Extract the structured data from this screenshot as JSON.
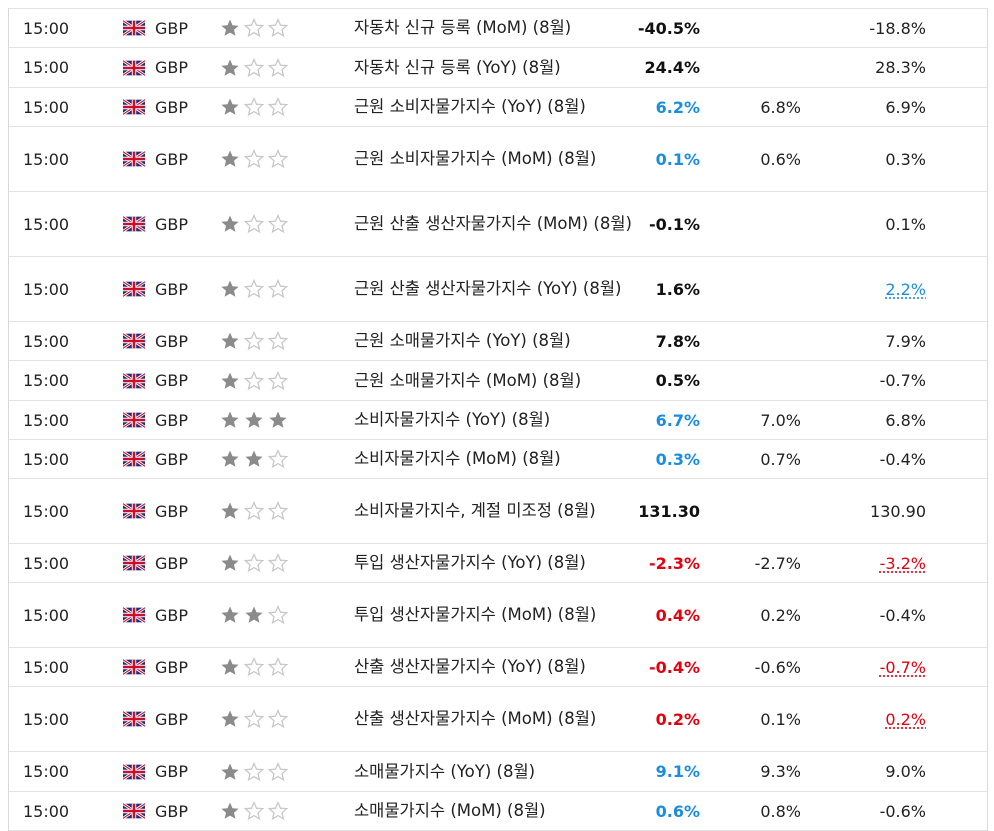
{
  "colors": {
    "black": "#111111",
    "blue": "#1a8ede",
    "red": "#e3000f",
    "star_on": "#8b8b8b",
    "star_off": "#c8c8c8"
  },
  "rows": [
    {
      "time": "15:00",
      "currency": "GBP",
      "importance": 1,
      "event": "자동차 신규 등록 (MoM) (8월)",
      "actual": "-40.5%",
      "actual_color": "black",
      "forecast": "",
      "previous": "-18.8%",
      "previous_color": "",
      "h": 38
    },
    {
      "time": "15:00",
      "currency": "GBP",
      "importance": 1,
      "event": "자동차 신규 등록 (YoY) (8월)",
      "actual": "24.4%",
      "actual_color": "black",
      "forecast": "",
      "previous": "28.3%",
      "previous_color": "",
      "h": 39
    },
    {
      "time": "15:00",
      "currency": "GBP",
      "importance": 1,
      "event": "근원 소비자물가지수 (YoY) (8월)",
      "actual": "6.2%",
      "actual_color": "blue",
      "forecast": "6.8%",
      "previous": "6.9%",
      "previous_color": "",
      "h": 38
    },
    {
      "time": "15:00",
      "currency": "GBP",
      "importance": 1,
      "event": "근원 소비자물가지수 (MoM) (8월)",
      "actual": "0.1%",
      "actual_color": "blue",
      "forecast": "0.6%",
      "previous": "0.3%",
      "previous_color": "",
      "h": 64
    },
    {
      "time": "15:00",
      "currency": "GBP",
      "importance": 1,
      "event": "근원 산출 생산자물가지수 (MoM) (8월)",
      "actual": "-0.1%",
      "actual_color": "black",
      "forecast": "",
      "previous": "0.1%",
      "previous_color": "",
      "h": 64
    },
    {
      "time": "15:00",
      "currency": "GBP",
      "importance": 1,
      "event": "근원 산출 생산자물가지수 (YoY) (8월)",
      "actual": "1.6%",
      "actual_color": "black",
      "forecast": "",
      "previous": "2.2%",
      "previous_color": "blue",
      "h": 64
    },
    {
      "time": "15:00",
      "currency": "GBP",
      "importance": 1,
      "event": "근원 소매물가지수 (YoY) (8월)",
      "actual": "7.8%",
      "actual_color": "black",
      "forecast": "",
      "previous": "7.9%",
      "previous_color": "",
      "h": 38
    },
    {
      "time": "15:00",
      "currency": "GBP",
      "importance": 1,
      "event": "근원 소매물가지수 (MoM) (8월)",
      "actual": "0.5%",
      "actual_color": "black",
      "forecast": "",
      "previous": "-0.7%",
      "previous_color": "",
      "h": 39
    },
    {
      "time": "15:00",
      "currency": "GBP",
      "importance": 3,
      "event": "소비자물가지수 (YoY) (8월)",
      "actual": "6.7%",
      "actual_color": "blue",
      "forecast": "7.0%",
      "previous": "6.8%",
      "previous_color": "",
      "h": 38
    },
    {
      "time": "15:00",
      "currency": "GBP",
      "importance": 2,
      "event": "소비자물가지수 (MoM) (8월)",
      "actual": "0.3%",
      "actual_color": "blue",
      "forecast": "0.7%",
      "previous": "-0.4%",
      "previous_color": "",
      "h": 38
    },
    {
      "time": "15:00",
      "currency": "GBP",
      "importance": 1,
      "event": "소비자물가지수, 계절 미조정 (8월)",
      "actual": "131.30",
      "actual_color": "black",
      "forecast": "",
      "previous": "130.90",
      "previous_color": "",
      "h": 64
    },
    {
      "time": "15:00",
      "currency": "GBP",
      "importance": 1,
      "event": "투입 생산자물가지수 (YoY) (8월)",
      "actual": "-2.3%",
      "actual_color": "red",
      "forecast": "-2.7%",
      "previous": "-3.2%",
      "previous_color": "red",
      "h": 38
    },
    {
      "time": "15:00",
      "currency": "GBP",
      "importance": 2,
      "event": "투입 생산자물가지수 (MoM) (8월)",
      "actual": "0.4%",
      "actual_color": "red",
      "forecast": "0.2%",
      "previous": "-0.4%",
      "previous_color": "",
      "h": 64
    },
    {
      "time": "15:00",
      "currency": "GBP",
      "importance": 1,
      "event": "산출 생산자물가지수 (YoY) (8월)",
      "actual": "-0.4%",
      "actual_color": "red",
      "forecast": "-0.6%",
      "previous": "-0.7%",
      "previous_color": "red",
      "h": 38
    },
    {
      "time": "15:00",
      "currency": "GBP",
      "importance": 1,
      "event": "산출 생산자물가지수 (MoM) (8월)",
      "actual": "0.2%",
      "actual_color": "red",
      "forecast": "0.1%",
      "previous": "0.2%",
      "previous_color": "red",
      "h": 64
    },
    {
      "time": "15:00",
      "currency": "GBP",
      "importance": 1,
      "event": "소매물가지수 (YoY) (8월)",
      "actual": "9.1%",
      "actual_color": "blue",
      "forecast": "9.3%",
      "previous": "9.0%",
      "previous_color": "",
      "h": 39
    },
    {
      "time": "15:00",
      "currency": "GBP",
      "importance": 1,
      "event": "소매물가지수 (MoM) (8월)",
      "actual": "0.6%",
      "actual_color": "blue",
      "forecast": "0.8%",
      "previous": "-0.6%",
      "previous_color": "",
      "h": 38
    }
  ]
}
